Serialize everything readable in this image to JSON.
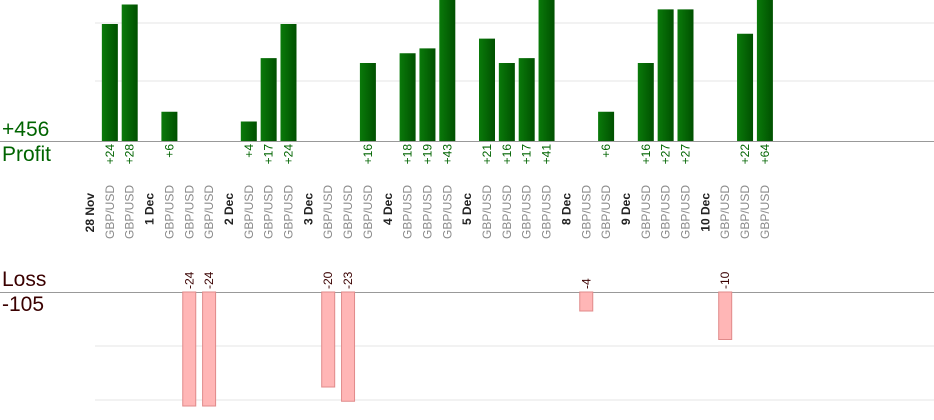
{
  "summary": {
    "profit_total": "+456",
    "profit_label": "Profit",
    "loss_label": "Loss",
    "loss_total": "-105"
  },
  "colors": {
    "profit_bar_dark": "#005000",
    "profit_bar_light": "#0a7a0a",
    "profit_text": "#006400",
    "loss_bar_fill": "#ffb6b6",
    "loss_bar_edge": "#e08a8a",
    "loss_text": "#3a0000",
    "date_text": "#222222",
    "pair_text": "#8a8a8a",
    "grid": "#e6e6e6",
    "baseline": "#999999"
  },
  "chart_data": {
    "type": "bar",
    "profit_scale_max": 24,
    "loss_scale_max": 24,
    "columns": [
      {
        "kind": "date",
        "label": "28 Nov"
      },
      {
        "kind": "trade",
        "pair": "GBP/USD",
        "value": 24
      },
      {
        "kind": "trade",
        "pair": "GBP/USD",
        "value": 28
      },
      {
        "kind": "date",
        "label": "1 Dec"
      },
      {
        "kind": "trade",
        "pair": "GBP/USD",
        "value": 6
      },
      {
        "kind": "trade",
        "pair": "GBP/USD",
        "value": -24
      },
      {
        "kind": "trade",
        "pair": "GBP/USD",
        "value": -24
      },
      {
        "kind": "date",
        "label": "2 Dec"
      },
      {
        "kind": "trade",
        "pair": "GBP/USD",
        "value": 4
      },
      {
        "kind": "trade",
        "pair": "GBP/USD",
        "value": 17
      },
      {
        "kind": "trade",
        "pair": "GBP/USD",
        "value": 24
      },
      {
        "kind": "date",
        "label": "3 Dec"
      },
      {
        "kind": "trade",
        "pair": "GBP/USD",
        "value": -20
      },
      {
        "kind": "trade",
        "pair": "GBP/USD",
        "value": -23
      },
      {
        "kind": "trade",
        "pair": "GBP/USD",
        "value": 16
      },
      {
        "kind": "date",
        "label": "4 Dec"
      },
      {
        "kind": "trade",
        "pair": "GBP/USD",
        "value": 18
      },
      {
        "kind": "trade",
        "pair": "GBP/USD",
        "value": 19
      },
      {
        "kind": "trade",
        "pair": "GBP/USD",
        "value": 43
      },
      {
        "kind": "date",
        "label": "5 Dec"
      },
      {
        "kind": "trade",
        "pair": "GBP/USD",
        "value": 21
      },
      {
        "kind": "trade",
        "pair": "GBP/USD",
        "value": 16
      },
      {
        "kind": "trade",
        "pair": "GBP/USD",
        "value": 17
      },
      {
        "kind": "trade",
        "pair": "GBP/USD",
        "value": 41
      },
      {
        "kind": "date",
        "label": "8 Dec"
      },
      {
        "kind": "trade",
        "pair": "GBP/USD",
        "value": -4
      },
      {
        "kind": "trade",
        "pair": "GBP/USD",
        "value": 6
      },
      {
        "kind": "date",
        "label": "9 Dec"
      },
      {
        "kind": "trade",
        "pair": "GBP/USD",
        "value": 16
      },
      {
        "kind": "trade",
        "pair": "GBP/USD",
        "value": 27
      },
      {
        "kind": "trade",
        "pair": "GBP/USD",
        "value": 27
      },
      {
        "kind": "date",
        "label": "10 Dec"
      },
      {
        "kind": "trade",
        "pair": "GBP/USD",
        "value": -10
      },
      {
        "kind": "trade",
        "pair": "GBP/USD",
        "value": 22
      },
      {
        "kind": "trade",
        "pair": "GBP/USD",
        "value": 64
      }
    ]
  }
}
